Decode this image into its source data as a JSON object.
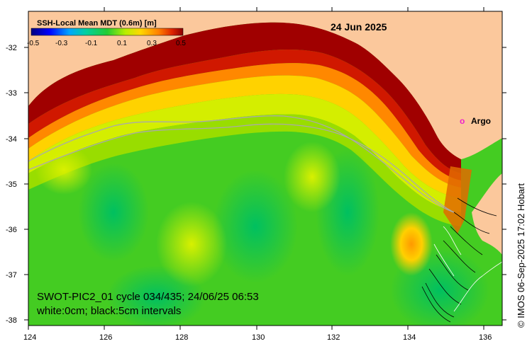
{
  "title": "SSH-Local Mean MDT (0.6m) [m]",
  "date": "24 Jun 2025",
  "colorbar_ticks": [
    "-0.5",
    "-0.3",
    "-0.1",
    "0.1",
    "0.3",
    "0.5"
  ],
  "argo_label": "Argo",
  "argo_symbol": "o",
  "info_line1": "SWOT-PIC2_01 cycle 034/435; 24/06/25 06:53",
  "info_line2": "white:0cm; black:5cm intervals",
  "credit": "© IMOS 06-Sep-2025 17:02 Hobart",
  "y_ticks": [
    "-32",
    "-33",
    "-34",
    "-35",
    "-36",
    "-37",
    "-38"
  ],
  "x_ticks": [
    "124",
    "126",
    "128",
    "130",
    "132",
    "134",
    "136"
  ],
  "colors": {
    "land": "#fbc89c",
    "argo": "#ee22cc",
    "high": "#a00000"
  }
}
